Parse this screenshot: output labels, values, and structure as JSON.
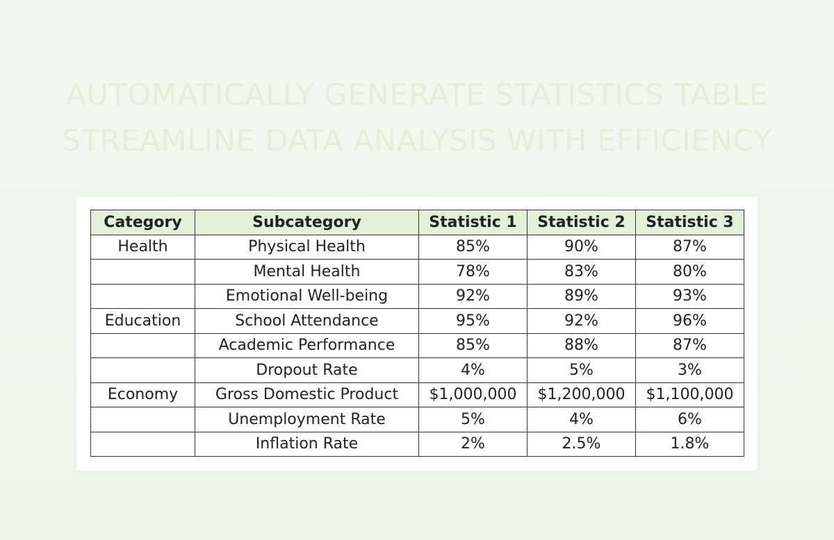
{
  "header": {
    "title_line1": "AUTOMATICALLY GENERATE STATISTICS TABLE",
    "title_line2": "STREAMLINE DATA ANALYSIS WITH EFFICIENCY"
  },
  "table": {
    "columns": [
      "Category",
      "Subcategory",
      "Statistic 1",
      "Statistic 2",
      "Statistic 3"
    ],
    "rows": [
      {
        "category": "Health",
        "subcategory": "Physical Health",
        "s1": "85%",
        "s2": "90%",
        "s3": "87%"
      },
      {
        "category": "",
        "subcategory": "Mental Health",
        "s1": "78%",
        "s2": "83%",
        "s3": "80%"
      },
      {
        "category": "",
        "subcategory": "Emotional Well-being",
        "s1": "92%",
        "s2": "89%",
        "s3": "93%"
      },
      {
        "category": "Education",
        "subcategory": "School Attendance",
        "s1": "95%",
        "s2": "92%",
        "s3": "96%"
      },
      {
        "category": "",
        "subcategory": "Academic Performance",
        "s1": "85%",
        "s2": "88%",
        "s3": "87%"
      },
      {
        "category": "",
        "subcategory": "Dropout Rate",
        "s1": "4%",
        "s2": "5%",
        "s3": "3%"
      },
      {
        "category": "Economy",
        "subcategory": "Gross Domestic Product",
        "s1": "$1,000,000",
        "s2": "$1,200,000",
        "s3": "$1,100,000"
      },
      {
        "category": "",
        "subcategory": "Unemployment Rate",
        "s1": "5%",
        "s2": "4%",
        "s3": "6%"
      },
      {
        "category": "",
        "subcategory": "Inflation Rate",
        "s1": "2%",
        "s2": "2.5%",
        "s3": "1.8%"
      }
    ]
  },
  "colors": {
    "header_fill": "#e2efd9",
    "title_text": "#e3f0d9",
    "background": "#f2f8ee",
    "border": "#333333"
  }
}
